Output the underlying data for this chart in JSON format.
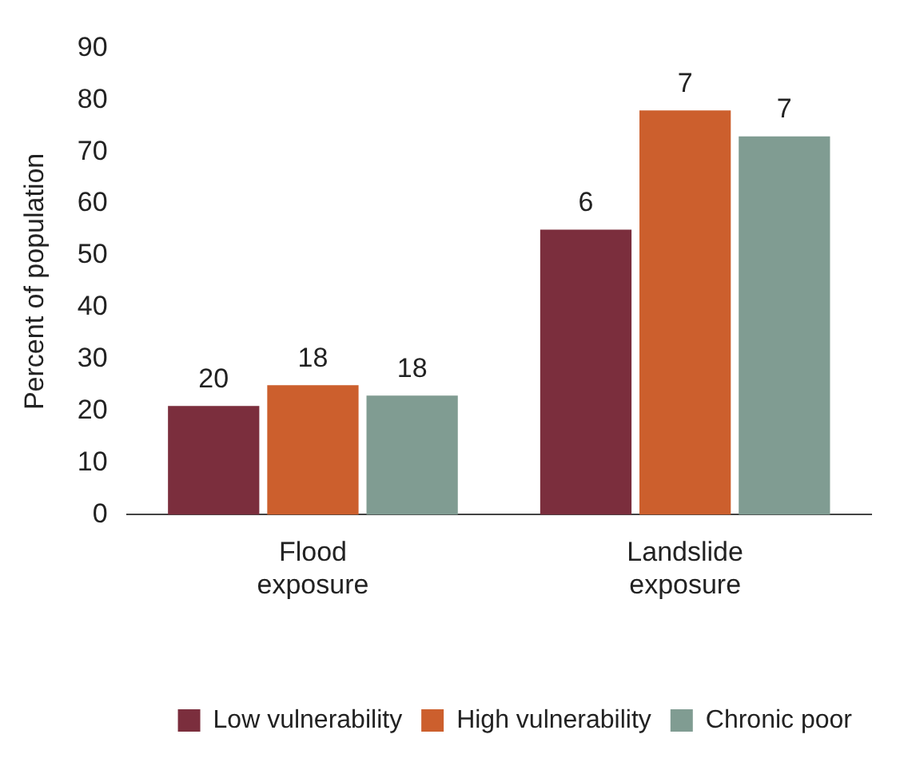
{
  "chart_data": {
    "type": "bar",
    "ylabel": "Percent of population",
    "categories": [
      "Flood exposure",
      "Landslide exposure"
    ],
    "series": [
      {
        "name": "Low vulnerability",
        "color": "#7b2e3d",
        "values": [
          21,
          55
        ]
      },
      {
        "name": "High vulnerability",
        "color": "#cc5f2d",
        "values": [
          25,
          78
        ]
      },
      {
        "name": "Chronic poor",
        "color": "#809c92",
        "values": [
          23,
          73
        ]
      }
    ],
    "annotations": [
      "20",
      "18",
      "18",
      "6",
      "7",
      "7"
    ],
    "ylim": [
      0,
      90
    ],
    "yticks": [
      0,
      10,
      20,
      30,
      40,
      50,
      60,
      70,
      80,
      90
    ],
    "grid": false,
    "legend": "bottom"
  }
}
